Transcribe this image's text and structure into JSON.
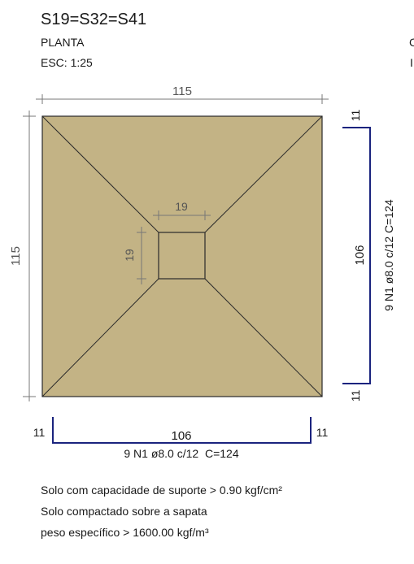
{
  "header": {
    "title": "S19=S32=S41",
    "view": "PLANTA",
    "scale": "ESC: 1:25"
  },
  "footing": {
    "fill_color": "#c3b385",
    "edge_color": "#2a2a2a",
    "overall_width": "115",
    "overall_length": "115",
    "column_width": "19",
    "column_length": "19"
  },
  "rebar": {
    "color": "#1a237e",
    "vertical": {
      "top_hook": "11",
      "straight_length": "106",
      "bottom_hook": "11",
      "spec": "9 N1 ø8.0 c/12 C=124"
    },
    "horizontal": {
      "left_hook": "11",
      "straight_length": "106",
      "right_hook": "11",
      "spec": "9 N1 ø8.0 c/12  C=124"
    }
  },
  "notes": [
    "Solo com capacidade de suporte > 0.90 kgf/cm²",
    "Solo compactado sobre a sapata",
    "peso específico > 1600.00 kgf/m³"
  ],
  "edge_glyphs": [
    "C",
    "I"
  ]
}
